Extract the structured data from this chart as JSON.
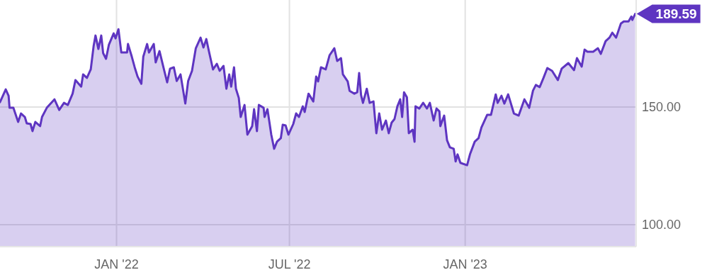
{
  "chart_data": {
    "type": "area",
    "x": [
      "2021-09-01",
      "2021-09-07",
      "2021-09-10",
      "2021-09-11",
      "2021-09-15",
      "2021-09-20",
      "2021-09-23",
      "2021-09-27",
      "2021-09-29",
      "2021-10-03",
      "2021-10-05",
      "2021-10-08",
      "2021-10-13",
      "2021-10-15",
      "2021-10-20",
      "2021-10-28",
      "2021-11-02",
      "2021-11-07",
      "2021-11-11",
      "2021-11-16",
      "2021-11-19",
      "2021-11-25",
      "2021-11-27",
      "2021-12-01",
      "2021-12-05",
      "2021-12-08",
      "2021-12-10",
      "2021-12-13",
      "2021-12-16",
      "2021-12-18",
      "2021-12-21",
      "2021-12-24",
      "2021-12-29",
      "2021-12-31",
      "2022-01-03",
      "2022-01-06",
      "2022-01-12",
      "2022-01-13",
      "2022-01-17",
      "2022-01-20",
      "2022-01-23",
      "2022-01-27",
      "2022-01-29",
      "2022-02-02",
      "2022-02-04",
      "2022-02-09",
      "2022-02-11",
      "2022-02-15",
      "2022-02-20",
      "2022-02-23",
      "2022-02-26",
      "2022-03-02",
      "2022-03-05",
      "2022-03-09",
      "2022-03-14",
      "2022-03-17",
      "2022-03-21",
      "2022-03-25",
      "2022-03-30",
      "2022-04-02",
      "2022-04-05",
      "2022-04-08",
      "2022-04-12",
      "2022-04-16",
      "2022-04-19",
      "2022-04-23",
      "2022-04-26",
      "2022-04-29",
      "2022-05-01",
      "2022-05-04",
      "2022-05-06",
      "2022-05-09",
      "2022-05-11",
      "2022-05-15",
      "2022-05-18",
      "2022-05-23",
      "2022-05-25",
      "2022-05-28",
      "2022-05-30",
      "2022-06-04",
      "2022-06-05",
      "2022-06-08",
      "2022-06-12",
      "2022-06-15",
      "2022-06-18",
      "2022-06-22",
      "2022-06-24",
      "2022-06-27",
      "2022-06-30",
      "2022-07-05",
      "2022-07-08",
      "2022-07-11",
      "2022-07-15",
      "2022-07-17",
      "2022-07-21",
      "2022-07-26",
      "2022-07-29",
      "2022-07-31",
      "2022-08-03",
      "2022-08-08",
      "2022-08-12",
      "2022-08-17",
      "2022-08-20",
      "2022-08-24",
      "2022-08-26",
      "2022-08-31",
      "2022-09-02",
      "2022-09-07",
      "2022-09-10",
      "2022-09-12",
      "2022-09-14",
      "2022-09-16",
      "2022-09-20",
      "2022-09-23",
      "2022-09-27",
      "2022-09-30",
      "2022-10-03",
      "2022-10-06",
      "2022-10-10",
      "2022-10-13",
      "2022-10-16",
      "2022-10-19",
      "2022-10-22",
      "2022-10-25",
      "2022-10-27",
      "2022-10-29",
      "2022-11-01",
      "2022-11-03",
      "2022-11-07",
      "2022-11-09",
      "2022-11-10",
      "2022-11-14",
      "2022-11-18",
      "2022-11-22",
      "2022-11-25",
      "2022-11-29",
      "2022-12-02",
      "2022-12-05",
      "2022-12-06",
      "2022-12-10",
      "2022-12-13",
      "2022-12-16",
      "2022-12-20",
      "2022-12-22",
      "2022-12-24",
      "2022-12-27",
      "2023-01-03",
      "2023-01-06",
      "2023-01-11",
      "2023-01-15",
      "2023-01-18",
      "2023-01-24",
      "2023-01-28",
      "2023-02-02",
      "2023-02-04",
      "2023-02-08",
      "2023-02-11",
      "2023-02-15",
      "2023-02-21",
      "2023-02-26",
      "2023-03-04",
      "2023-03-09",
      "2023-03-13",
      "2023-03-16",
      "2023-03-20",
      "2023-03-24",
      "2023-03-28",
      "2023-04-02",
      "2023-04-08",
      "2023-04-12",
      "2023-04-19",
      "2023-04-25",
      "2023-04-28",
      "2023-05-03",
      "2023-05-06",
      "2023-05-09",
      "2023-05-15",
      "2023-05-20",
      "2023-05-23",
      "2023-05-28",
      "2023-06-01",
      "2023-06-04",
      "2023-06-08",
      "2023-06-13",
      "2023-06-16",
      "2023-06-21",
      "2023-06-24",
      "2023-06-25",
      "2023-06-28"
    ],
    "series": [
      {
        "color": "#5e35c1",
        "values": [
          152.1,
          157.5,
          154.8,
          149.7,
          149.7,
          143.7,
          147.3,
          145.8,
          143.1,
          142.8,
          139.8,
          143.7,
          141.9,
          145.8,
          149.7,
          153.3,
          148.8,
          151.8,
          150.9,
          155.7,
          161.5,
          158.7,
          163.9,
          162.4,
          166.0,
          175.9,
          180.4,
          174.7,
          180.4,
          172.9,
          170.5,
          176.5,
          181.3,
          179.2,
          183.1,
          173.2,
          173.2,
          176.8,
          171.4,
          166.9,
          163.0,
          159.9,
          171.4,
          176.8,
          173.2,
          176.8,
          169.0,
          173.8,
          165.4,
          160.5,
          166.3,
          166.9,
          161.1,
          163.9,
          151.5,
          161.1,
          165.4,
          175.0,
          179.5,
          175.3,
          178.9,
          173.2,
          166.0,
          168.4,
          165.4,
          167.5,
          157.8,
          163.9,
          158.7,
          166.9,
          157.8,
          153.9,
          145.8,
          150.9,
          138.3,
          141.9,
          149.1,
          139.8,
          150.9,
          149.7,
          145.8,
          149.1,
          138.3,
          132.3,
          135.3,
          136.8,
          142.5,
          142.2,
          138.3,
          142.8,
          147.3,
          145.8,
          150.3,
          147.9,
          155.7,
          152.4,
          163.0,
          160.9,
          166.9,
          166.0,
          172.0,
          175.0,
          169.6,
          170.8,
          163.9,
          160.9,
          156.9,
          155.7,
          156.3,
          164.5,
          155.1,
          151.8,
          157.8,
          151.8,
          152.4,
          138.9,
          147.3,
          140.4,
          144.3,
          138.9,
          143.4,
          144.9,
          150.3,
          153.3,
          145.8,
          156.3,
          154.2,
          138.9,
          140.4,
          135.3,
          150.3,
          149.4,
          151.8,
          149.4,
          151.8,
          144.3,
          149.4,
          148.2,
          141.9,
          146.4,
          135.9,
          132.9,
          132.3,
          126.9,
          129.9,
          126.3,
          125.3,
          129.9,
          135.3,
          136.8,
          141.3,
          146.7,
          146.7,
          155.4,
          151.8,
          154.8,
          151.5,
          155.4,
          147.3,
          146.4,
          153.3,
          149.7,
          157.0,
          159.4,
          158.5,
          162.4,
          166.6,
          165.4,
          161.5,
          166.3,
          168.7,
          165.7,
          170.8,
          167.2,
          174.4,
          173.5,
          173.5,
          175.0,
          172.6,
          178.0,
          179.5,
          181.6,
          179.5,
          185.5,
          186.4,
          186.4,
          188.5,
          187.0,
          189.59
        ]
      }
    ],
    "xlim": [
      "2021-09-01",
      "2023-06-29"
    ],
    "xticks": [
      {
        "value": "2022-01-01",
        "label": "JAN '22"
      },
      {
        "value": "2022-07-01",
        "label": "JUL '22"
      },
      {
        "value": "2023-01-01",
        "label": "JAN '23"
      }
    ],
    "ylim": [
      90.7,
      195.5
    ],
    "yticks": [
      {
        "value": 100,
        "label": "100.00"
      },
      {
        "value": 150,
        "label": "150.00"
      }
    ],
    "grid": true,
    "marker": "none",
    "line_style": "solid",
    "annotations": [
      {
        "text": "189.59",
        "x": "2023-06-28",
        "y": 189.59
      }
    ]
  }
}
